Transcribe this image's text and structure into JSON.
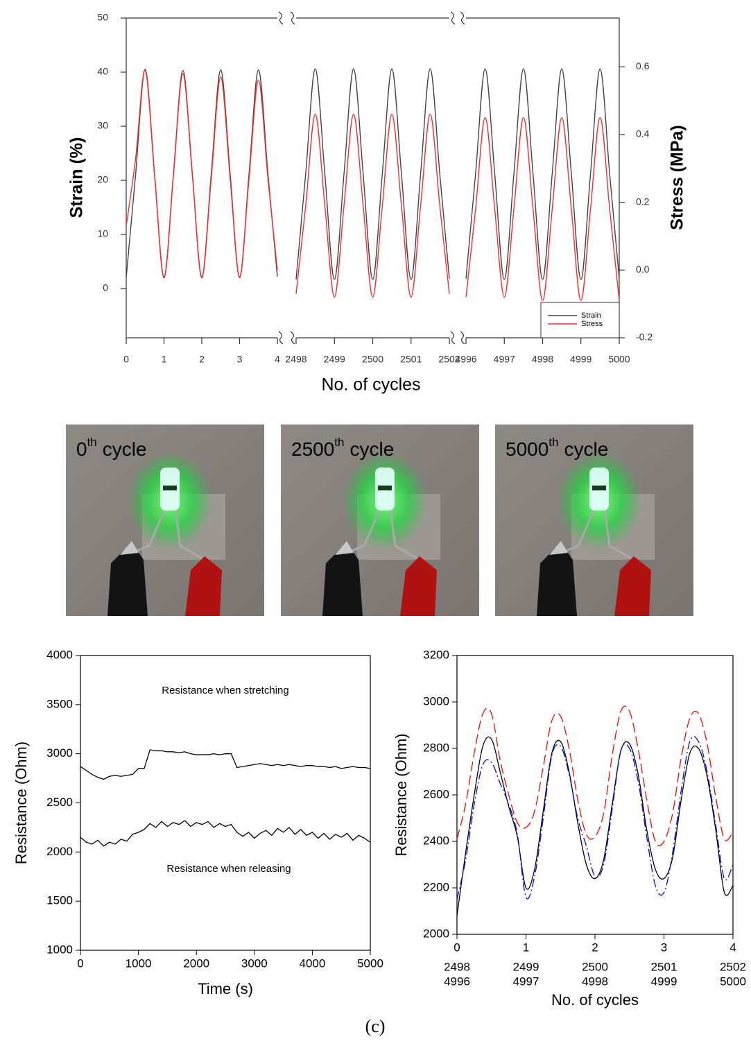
{
  "chart_data": [
    {
      "type": "line",
      "x_label": "No. of cycles",
      "y_label": "Strain (%)",
      "y2_label": "Stress (MPa)",
      "x_breaks": [
        [
          0,
          4
        ],
        [
          2498,
          2502
        ],
        [
          4996,
          5000
        ]
      ],
      "x": [
        0,
        0.25,
        0.5,
        0.75,
        1,
        1.25,
        1.5,
        1.75,
        2,
        2.25,
        2.5,
        2.75,
        3,
        3.25,
        3.5,
        3.75,
        4,
        2498,
        2498.25,
        2498.5,
        2498.75,
        2499,
        2499.25,
        2499.5,
        2499.75,
        2500,
        2500.25,
        2500.5,
        2500.75,
        2501,
        2501.25,
        2501.5,
        2501.75,
        2502,
        4996,
        4996.25,
        4996.5,
        4996.75,
        4997,
        4997.25,
        4997.5,
        4997.75,
        4998,
        4998.25,
        4998.5,
        4998.75,
        4999,
        4999.25,
        4999.5,
        4999.75,
        5000
      ],
      "xticks": [
        0,
        1,
        2,
        3,
        4,
        2498,
        2499,
        2500,
        2501,
        2502,
        4996,
        4997,
        4998,
        4999,
        5000
      ],
      "ylim": [
        -9.1,
        50
      ],
      "yticks": [
        0,
        10,
        20,
        30,
        40,
        50
      ],
      "y2lim": [
        -0.2,
        0.744
      ],
      "y2ticks": [
        -0.2,
        {
          "value": 0,
          "label": "0.0"
        },
        0.2,
        0.4,
        0.6
      ],
      "legend": "lower right",
      "series": [
        {
          "name": "Strain",
          "color": "#444444",
          "values": [
            2,
            21.2,
            40.5,
            21.2,
            2,
            21.2,
            40.3,
            21.2,
            2,
            21.2,
            40.4,
            21.2,
            2,
            21.2,
            40.4,
            21.2,
            2.2,
            1.7,
            21.2,
            40.6,
            21.2,
            1.7,
            21.2,
            40.6,
            21.2,
            1.7,
            21.2,
            40.6,
            21.2,
            1.7,
            21.2,
            40.6,
            21.2,
            1.8,
            1.8,
            21.2,
            40.6,
            21.2,
            1.7,
            21.2,
            40.6,
            21.2,
            1.7,
            21.2,
            40.6,
            21.2,
            1.7,
            21.2,
            40.6,
            21.2,
            1.8
          ]
        },
        {
          "name": "Stress",
          "color": "#ff2a2a",
          "axis": "y2",
          "values": [
            0.13,
            0.33,
            0.59,
            0.28,
            -0.02,
            0.28,
            0.58,
            0.28,
            -0.02,
            0.27,
            0.57,
            0.27,
            -0.02,
            0.27,
            0.56,
            0.27,
            0,
            -0.07,
            0.19,
            0.46,
            0.19,
            -0.08,
            0.19,
            0.46,
            0.19,
            -0.08,
            0.19,
            0.46,
            0.19,
            -0.08,
            0.19,
            0.46,
            0.19,
            -0.07,
            -0.08,
            0.18,
            0.45,
            0.18,
            -0.08,
            0.18,
            0.45,
            0.18,
            -0.09,
            0.18,
            0.45,
            0.18,
            -0.09,
            0.18,
            0.45,
            0.18,
            -0.09
          ]
        }
      ]
    },
    {
      "type": "line",
      "x_label": "Time (s)",
      "y_label": "Resistance (Ohm)",
      "annotations": [
        "Resistance when stretching",
        "Resistance when releasing"
      ],
      "xlim": [
        0,
        5000
      ],
      "xticks": [
        0,
        1000,
        2000,
        3000,
        4000,
        5000
      ],
      "ylim": [
        1000,
        4000
      ],
      "yticks": [
        1000,
        1500,
        2000,
        2500,
        3000,
        3500,
        4000
      ],
      "x": [
        0,
        100,
        200,
        300,
        400,
        500,
        600,
        700,
        800,
        900,
        1000,
        1100,
        1200,
        1300,
        1400,
        1500,
        1600,
        1700,
        1800,
        1900,
        2000,
        2100,
        2200,
        2300,
        2400,
        2500,
        2600,
        2700,
        2800,
        2900,
        3000,
        3100,
        3200,
        3300,
        3400,
        3500,
        3600,
        3700,
        3800,
        3900,
        4000,
        4100,
        4200,
        4300,
        4400,
        4500,
        4600,
        4700,
        4800,
        4900,
        5000
      ],
      "series": [
        {
          "color": "#000000",
          "style": "solid",
          "values": [
            2870,
            2830,
            2790,
            2760,
            2740,
            2770,
            2780,
            2770,
            2780,
            2790,
            2850,
            2850,
            3040,
            3030,
            3030,
            3020,
            3020,
            3010,
            3020,
            3000,
            2990,
            2990,
            2990,
            3000,
            2990,
            3000,
            3000,
            2860,
            2870,
            2880,
            2890,
            2900,
            2890,
            2880,
            2890,
            2880,
            2890,
            2880,
            2870,
            2880,
            2880,
            2870,
            2870,
            2860,
            2870,
            2850,
            2860,
            2870,
            2860,
            2860,
            2850
          ]
        },
        {
          "color": "#000000",
          "style": "solid",
          "values": [
            2150,
            2100,
            2080,
            2120,
            2060,
            2100,
            2080,
            2130,
            2110,
            2180,
            2200,
            2230,
            2290,
            2250,
            2310,
            2260,
            2300,
            2280,
            2320,
            2260,
            2300,
            2280,
            2310,
            2250,
            2290,
            2260,
            2280,
            2200,
            2160,
            2200,
            2140,
            2190,
            2220,
            2170,
            2240,
            2200,
            2250,
            2180,
            2230,
            2170,
            2200,
            2140,
            2190,
            2130,
            2180,
            2150,
            2190,
            2120,
            2170,
            2140,
            2100
          ]
        }
      ]
    },
    {
      "type": "line",
      "x_label": "No. of cycles",
      "y_label": "Resistance (Ohm)",
      "xlim": [
        0,
        4
      ],
      "xticks": [
        0,
        1,
        2,
        3,
        4
      ],
      "xtick_rows": [
        {
          "color": "#ff0000",
          "labels": [
            2498,
            2499,
            2500,
            2501,
            2502
          ]
        },
        {
          "color": "#0000ff",
          "labels": [
            4996,
            4997,
            4998,
            4999,
            5000
          ]
        }
      ],
      "ylim": [
        2000,
        3200
      ],
      "yticks": [
        2000,
        2200,
        2400,
        2600,
        2800,
        3000,
        3200
      ],
      "x": [
        0,
        0.125,
        0.25,
        0.375,
        0.5,
        0.625,
        0.75,
        0.875,
        1,
        1.125,
        1.25,
        1.375,
        1.5,
        1.625,
        1.75,
        1.875,
        2,
        2.125,
        2.25,
        2.375,
        2.5,
        2.625,
        2.75,
        2.875,
        3,
        3.125,
        3.25,
        3.375,
        3.5,
        3.625,
        3.75,
        3.875,
        4
      ],
      "series": [
        {
          "color": "#000000",
          "style": "solid",
          "values": [
            2080,
            2350,
            2600,
            2810,
            2840,
            2700,
            2550,
            2420,
            2200,
            2280,
            2530,
            2780,
            2830,
            2700,
            2480,
            2300,
            2240,
            2320,
            2560,
            2790,
            2820,
            2690,
            2450,
            2280,
            2240,
            2330,
            2580,
            2780,
            2800,
            2680,
            2450,
            2180,
            2210
          ]
        },
        {
          "color": "#ff0000",
          "style": "dashed",
          "values": [
            2410,
            2560,
            2780,
            2950,
            2950,
            2750,
            2600,
            2480,
            2460,
            2530,
            2720,
            2920,
            2940,
            2800,
            2580,
            2430,
            2420,
            2520,
            2770,
            2960,
            2960,
            2800,
            2580,
            2400,
            2400,
            2520,
            2760,
            2930,
            2950,
            2820,
            2590,
            2410,
            2440
          ]
        },
        {
          "color": "#0000ff",
          "style": "dash-dot",
          "values": [
            2150,
            2320,
            2560,
            2730,
            2740,
            2650,
            2560,
            2430,
            2160,
            2250,
            2500,
            2770,
            2810,
            2690,
            2500,
            2380,
            2250,
            2300,
            2540,
            2790,
            2800,
            2660,
            2420,
            2210,
            2180,
            2350,
            2620,
            2830,
            2830,
            2700,
            2470,
            2240,
            2300
          ]
        }
      ]
    }
  ],
  "photos": [
    {
      "number": "0",
      "ordinal": "th",
      "text": "cycle"
    },
    {
      "number": "2500",
      "ordinal": "th",
      "text": "cycle"
    },
    {
      "number": "5000",
      "ordinal": "th",
      "text": "cycle"
    }
  ],
  "caption": "(c)"
}
